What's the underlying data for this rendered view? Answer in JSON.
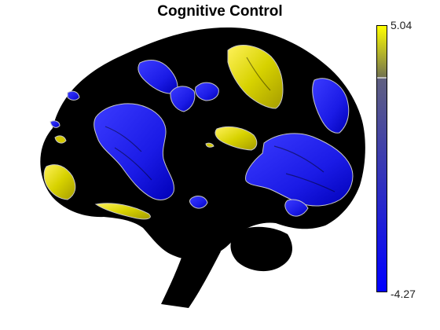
{
  "figure": {
    "title": "Cognitive Control",
    "colorbar": {
      "max_label": "5.04",
      "min_label": "-4.27",
      "max_value": 5.04,
      "min_value": -4.27,
      "threshold_fraction": 0.196,
      "colors": {
        "top": "#ffff00",
        "mid_upper": "#707050",
        "mid_lower": "#606080",
        "bottom": "#0000ff"
      }
    },
    "brain": {
      "background": "#000000",
      "positive_color": "#e0e000",
      "negative_color": "#1a1ae0",
      "outline_color": "#c8c8c8"
    }
  }
}
